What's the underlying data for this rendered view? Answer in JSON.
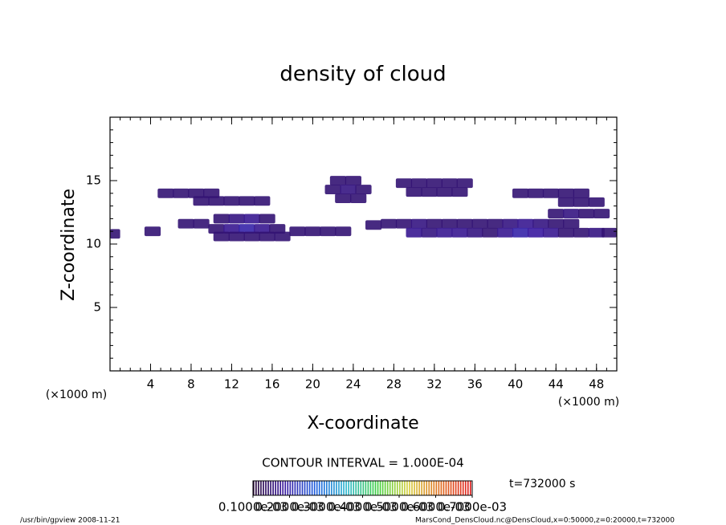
{
  "chart_data": {
    "type": "cells",
    "title": "density of cloud",
    "xlabel": "X-coordinate",
    "ylabel": "Z-coordinate",
    "x_unit": "(×1000 m)",
    "y_unit": "(×1000 m)",
    "contour_interval": "CONTOUR INTERVAL = 1.000E-04",
    "time_label": "t=732000 s",
    "footer_left": "/usr/bin/gpview   2008-11-21",
    "footer_right": "MarsCond_DensCloud.nc@DensCloud,x=0:50000,z=0:20000,t=732000",
    "xlim": [
      0,
      50
    ],
    "ylim": [
      0,
      20
    ],
    "xticks": [
      4,
      8,
      12,
      16,
      20,
      24,
      28,
      32,
      36,
      40,
      44,
      48
    ],
    "yticks": [
      5,
      10,
      15
    ],
    "colormap": [
      "#2a0a3a",
      "#3a1aa0",
      "#2060e0",
      "#30b8d0",
      "#40d040",
      "#d8d040",
      "#e07020",
      "#e02020"
    ],
    "colorbar": {
      "lim": [
        0.0001,
        0.0007
      ],
      "ticks": [
        {
          "value": 0.0001,
          "label": "0.1000e-03"
        },
        {
          "value": 0.0002,
          "label": "0.2000e-03"
        },
        {
          "value": 0.0003,
          "label": "0.3000e-03"
        },
        {
          "value": 0.0004,
          "label": "0.4000e-03"
        },
        {
          "value": 0.0005,
          "label": "0.5000e-03"
        },
        {
          "value": 0.0006,
          "label": "0.6000e-03"
        },
        {
          "value": 0.0007,
          "label": "0.7000e-03"
        }
      ]
    },
    "x": [
      5.5,
      7,
      8.5,
      10,
      9,
      10.5,
      12,
      13.5,
      15,
      7.5,
      9,
      11,
      12.5,
      14,
      15.5,
      10.5,
      12,
      13.5,
      15,
      16.5,
      11,
      12.5,
      14,
      15.5,
      17,
      18.5,
      20,
      21.5,
      23,
      22.5,
      24,
      22,
      23.5,
      25,
      23,
      24.5,
      29,
      30.5,
      32,
      33.5,
      35,
      30,
      31.5,
      33,
      34.5,
      29,
      30.5,
      32,
      33.5,
      35,
      36.5,
      38,
      39.5,
      41,
      42.5,
      44,
      45.5,
      30,
      31.5,
      33,
      34.5,
      36,
      37.5,
      39,
      40.5,
      42,
      43.5,
      45,
      46.5,
      48,
      49.3,
      40.5,
      42,
      43.5,
      45,
      46.5,
      45,
      46.5,
      48,
      44,
      45.5,
      47,
      48.5,
      0.2,
      4.2,
      26,
      27.5
    ],
    "y": [
      14,
      14,
      14,
      14,
      13.4,
      13.4,
      13.4,
      13.4,
      13.4,
      11.6,
      11.6,
      12,
      12,
      12,
      12,
      11.2,
      11.2,
      11.2,
      11.2,
      11.2,
      10.6,
      10.6,
      10.6,
      10.6,
      10.6,
      11,
      11,
      11,
      11,
      15,
      15,
      14.3,
      14.3,
      14.3,
      13.6,
      13.6,
      14.8,
      14.8,
      14.8,
      14.8,
      14.8,
      14.1,
      14.1,
      14.1,
      14.1,
      11.6,
      11.6,
      11.6,
      11.6,
      11.6,
      11.6,
      11.6,
      11.6,
      11.6,
      11.6,
      11.6,
      11.6,
      10.9,
      10.9,
      10.9,
      10.9,
      10.9,
      10.9,
      10.9,
      10.9,
      10.9,
      10.9,
      10.9,
      10.9,
      10.9,
      10.9,
      14,
      14,
      14,
      14,
      14,
      13.3,
      13.3,
      13.3,
      12.4,
      12.4,
      12.4,
      12.4,
      10.8,
      11,
      11.5,
      11.6
    ],
    "values": [
      0.0001,
      0.0001,
      0.0001,
      0.0001,
      0.0001,
      0.0001,
      0.0001,
      0.0001,
      0.0001,
      0.0001,
      0.0001,
      0.0001,
      0.00015,
      0.0002,
      0.0001,
      0.0001,
      0.0002,
      0.0003,
      0.0002,
      0.0001,
      0.0001,
      0.0001,
      0.0001,
      0.0001,
      0.0001,
      0.0001,
      0.0001,
      0.0001,
      0.0001,
      0.0001,
      0.0001,
      0.0001,
      0.00015,
      0.0001,
      0.0001,
      0.0001,
      0.0001,
      0.0001,
      0.0001,
      0.0001,
      0.0001,
      0.0001,
      0.0001,
      0.0001,
      0.0001,
      0.0001,
      0.00015,
      0.0001,
      0.0001,
      0.0001,
      0.0001,
      0.0001,
      0.00015,
      0.0002,
      0.00015,
      0.0001,
      0.0001,
      0.0002,
      0.00015,
      0.0002,
      0.0002,
      0.00015,
      0.0001,
      0.0002,
      0.0003,
      0.00025,
      0.0002,
      0.0001,
      0.0001,
      0.00015,
      0.0001,
      0.0001,
      0.0001,
      0.0001,
      0.0001,
      0.0001,
      0.0001,
      0.0001,
      0.0001,
      0.0001,
      0.00015,
      0.0001,
      0.0001,
      0.0001,
      0.0001,
      0.0001,
      0.0001
    ]
  }
}
